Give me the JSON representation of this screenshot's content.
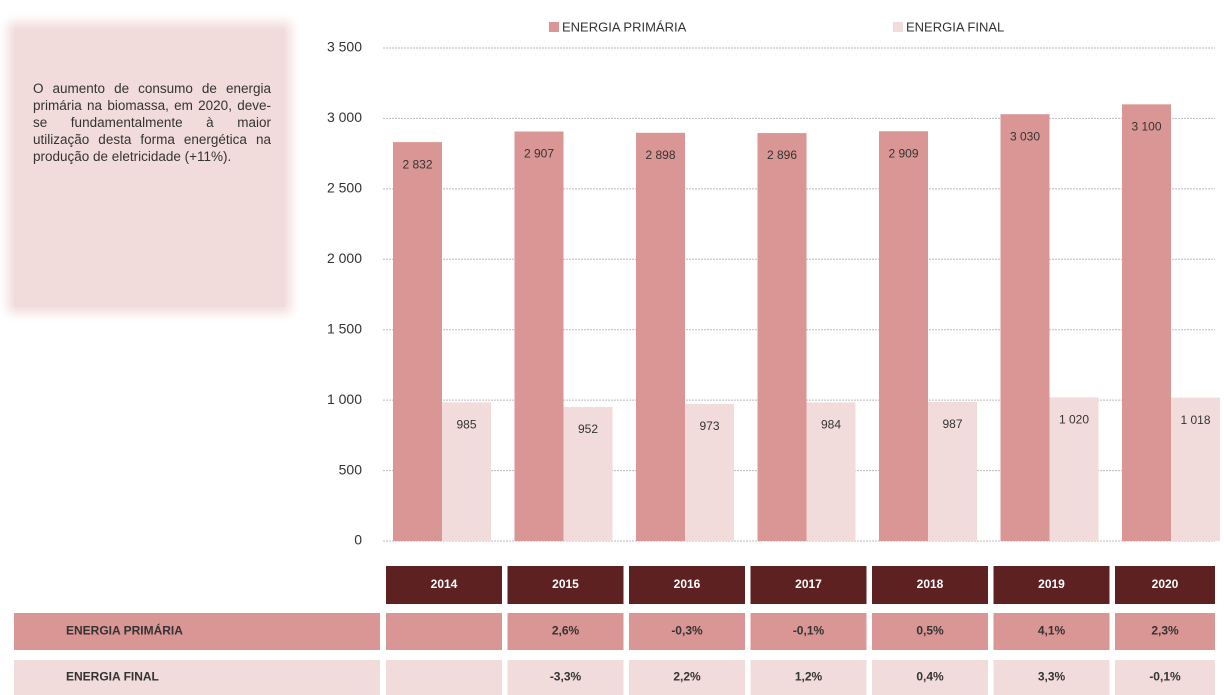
{
  "chart_data": {
    "type": "bar",
    "categories": [
      "2014",
      "2015",
      "2016",
      "2017",
      "2018",
      "2019",
      "2020"
    ],
    "series": [
      {
        "name": "ENERGIA PRIMÁRIA",
        "color": "#d99694",
        "values": [
          2832,
          2907,
          2898,
          2896,
          2909,
          3030,
          3100
        ],
        "value_labels": [
          "2 832",
          "2 907",
          "2 898",
          "2 896",
          "2 909",
          "3 030",
          "3 100"
        ]
      },
      {
        "name": "ENERGIA FINAL",
        "color": "#f2dcdb",
        "values": [
          985,
          952,
          973,
          984,
          987,
          1020,
          1018
        ],
        "value_labels": [
          "985",
          "952",
          "973",
          "984",
          "987",
          "1 020",
          "1 018"
        ]
      }
    ],
    "ylim": [
      0,
      3500
    ],
    "yticks": [
      0,
      500,
      {
        "value": 1000,
        "label": "1 000"
      },
      {
        "value": 1500,
        "label": "1 500"
      },
      {
        "value": 2000,
        "label": "2 000"
      },
      {
        "value": 2500,
        "label": "2 500"
      },
      {
        "value": 3000,
        "label": "3 000"
      },
      {
        "value": 3500,
        "label": "3 500"
      }
    ],
    "grid": true,
    "legend": "top"
  },
  "note": {
    "text": "O aumento de consumo de energia primária na biomassa, em 2020, deve-se fundamentalmente à maior utilização desta forma energética na produção de eletricidade (+11%)."
  },
  "table": {
    "header_color": "#5e2121",
    "rows": [
      {
        "label": "ENERGIA PRIMÁRIA",
        "color": "#d99694",
        "cells": [
          null,
          "2,6%",
          "-0,3%",
          "-0,1%",
          "0,5%",
          "4,1%",
          "2,3%"
        ]
      },
      {
        "label": "ENERGIA FINAL",
        "color": "#f2dcdb",
        "cells": [
          null,
          "-3,3%",
          "2,2%",
          "1,2%",
          "0,4%",
          "3,3%",
          "-0,1%"
        ]
      }
    ]
  }
}
